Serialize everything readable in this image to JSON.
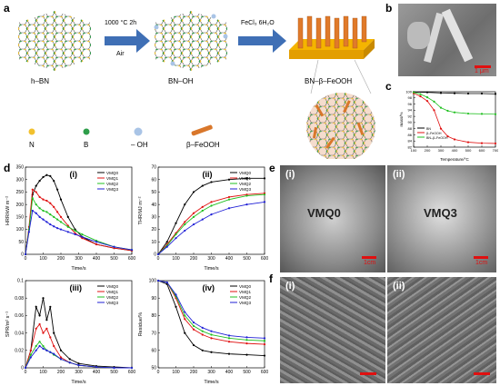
{
  "panels": {
    "a": "a",
    "b": "b",
    "c": "c",
    "d": "d",
    "e": "e",
    "f": "f"
  },
  "scheme": {
    "hbn": "h–BN",
    "bnoh": "BN–OH",
    "product": "BN–β–FeOOH",
    "step1_cond": "1000 °C 2h",
    "step1_atm": "Air",
    "step2_reagent": "FeCl₃ 6H₂O",
    "legend": {
      "n": "N",
      "b": "B",
      "oh": "– OH",
      "feooh": "β–FeOOH"
    },
    "colors": {
      "n": "#f2c12e",
      "b": "#2e9e4a",
      "oh": "#a9c4e6",
      "feooh": "#d9772b",
      "arrow": "#3f6fb5"
    }
  },
  "sem_b": {
    "scale": "1 μm"
  },
  "sem_e": {
    "i_tag": "(i)",
    "i_name": "VMQ0",
    "i_scale": "1cm",
    "ii_tag": "(ii)",
    "ii_name": "VMQ3",
    "ii_scale": "1cm"
  },
  "sem_f": {
    "i_tag": "(i)",
    "ii_tag": "(ii)"
  },
  "chart_data": [
    {
      "id": "c",
      "type": "line",
      "xlabel": "Temperature/°C",
      "ylabel": "mass/%",
      "xlim": [
        100,
        700
      ],
      "ylim": [
        82,
        100
      ],
      "xticks": [
        100,
        200,
        300,
        400,
        500,
        600,
        700
      ],
      "yticks": [
        82,
        84,
        86,
        88,
        90,
        92,
        94,
        96,
        98,
        100
      ],
      "series": [
        {
          "name": "BN",
          "color": "#000000",
          "x": [
            100,
            200,
            300,
            400,
            500,
            600,
            700
          ],
          "y": [
            99.9,
            99.8,
            99.6,
            99.5,
            99.4,
            99.4,
            99.3
          ]
        },
        {
          "name": "β–FeOOH",
          "color": "#e01010",
          "x": [
            100,
            150,
            200,
            250,
            300,
            350,
            400,
            500,
            600,
            700
          ],
          "y": [
            99.5,
            98.5,
            97,
            94,
            88,
            85.5,
            84.5,
            83.6,
            83.3,
            83.2
          ]
        },
        {
          "name": "BN–β–FeOOH",
          "color": "#22c022",
          "x": [
            100,
            150,
            200,
            250,
            300,
            350,
            400,
            500,
            600,
            700
          ],
          "y": [
            99.8,
            99.2,
            98.2,
            96.8,
            94.8,
            93.8,
            93.3,
            92.9,
            92.8,
            92.7
          ]
        }
      ]
    },
    {
      "id": "d1",
      "label": "(i)",
      "type": "line",
      "xlabel": "Time/s",
      "ylabel": "HRR/kW m⁻²",
      "xlim": [
        0,
        600
      ],
      "ylim": [
        0,
        350
      ],
      "xticks": [
        0,
        100,
        200,
        300,
        400,
        500,
        600
      ],
      "yticks": [
        0,
        50,
        100,
        150,
        200,
        250,
        300,
        350
      ],
      "series": [
        {
          "name": "VMQ0",
          "color": "#000000",
          "x": [
            0,
            20,
            40,
            60,
            80,
            100,
            120,
            140,
            160,
            180,
            200,
            240,
            280,
            320,
            400,
            500,
            600
          ],
          "y": [
            0,
            100,
            240,
            275,
            295,
            310,
            318,
            314,
            295,
            260,
            220,
            150,
            100,
            70,
            40,
            25,
            15
          ]
        },
        {
          "name": "VMQ1",
          "color": "#e01010",
          "x": [
            0,
            20,
            40,
            60,
            80,
            100,
            120,
            140,
            160,
            180,
            200,
            240,
            280,
            320,
            400,
            500,
            600
          ],
          "y": [
            0,
            110,
            260,
            250,
            230,
            220,
            215,
            205,
            190,
            170,
            150,
            115,
            85,
            65,
            40,
            25,
            15
          ]
        },
        {
          "name": "VMQ2",
          "color": "#22c022",
          "x": [
            0,
            20,
            40,
            60,
            80,
            100,
            120,
            140,
            160,
            180,
            200,
            240,
            280,
            320,
            400,
            500,
            600
          ],
          "y": [
            0,
            100,
            225,
            200,
            185,
            175,
            170,
            160,
            150,
            140,
            130,
            110,
            95,
            80,
            55,
            30,
            18
          ]
        },
        {
          "name": "VMQ3",
          "color": "#1f1fd6",
          "x": [
            0,
            20,
            40,
            60,
            80,
            100,
            120,
            140,
            160,
            180,
            200,
            240,
            280,
            320,
            400,
            500,
            600
          ],
          "y": [
            0,
            90,
            175,
            165,
            150,
            140,
            130,
            120,
            112,
            105,
            100,
            90,
            80,
            70,
            50,
            30,
            18
          ]
        }
      ]
    },
    {
      "id": "d2",
      "label": "(ii)",
      "type": "line",
      "xlabel": "Time/s",
      "ylabel": "THR/MJ m⁻²",
      "xlim": [
        0,
        600
      ],
      "ylim": [
        0,
        70
      ],
      "xticks": [
        0,
        100,
        200,
        300,
        400,
        500,
        600
      ],
      "yticks": [
        0,
        10,
        20,
        30,
        40,
        50,
        60,
        70
      ],
      "series": [
        {
          "name": "VMQ0",
          "color": "#000000",
          "x": [
            0,
            50,
            100,
            150,
            200,
            250,
            300,
            400,
            500,
            600
          ],
          "y": [
            0,
            10,
            25,
            40,
            50,
            55,
            58,
            60,
            61,
            61
          ]
        },
        {
          "name": "VMQ1",
          "color": "#e01010",
          "x": [
            0,
            50,
            100,
            150,
            200,
            250,
            300,
            400,
            500,
            600
          ],
          "y": [
            0,
            8,
            17,
            26,
            33,
            38,
            42,
            46,
            48,
            49
          ]
        },
        {
          "name": "VMQ2",
          "color": "#22c022",
          "x": [
            0,
            50,
            100,
            150,
            200,
            250,
            300,
            400,
            500,
            600
          ],
          "y": [
            0,
            7,
            16,
            24,
            30,
            35,
            39,
            44,
            47,
            48
          ]
        },
        {
          "name": "VMQ3",
          "color": "#1f1fd6",
          "x": [
            0,
            50,
            100,
            150,
            200,
            250,
            300,
            400,
            500,
            600
          ],
          "y": [
            0,
            6,
            13,
            19,
            24,
            28,
            32,
            37,
            40,
            42
          ]
        }
      ]
    },
    {
      "id": "d3",
      "label": "(iii)",
      "type": "line",
      "xlabel": "Time/s",
      "ylabel": "SPR/m² s⁻¹",
      "xlim": [
        0,
        600
      ],
      "ylim": [
        0,
        0.1
      ],
      "xticks": [
        0,
        100,
        200,
        300,
        400,
        500,
        600
      ],
      "yticks": [
        0,
        0.02,
        0.04,
        0.06,
        0.08,
        0.1
      ],
      "series": [
        {
          "name": "VMQ0",
          "color": "#000000",
          "x": [
            0,
            30,
            60,
            80,
            100,
            120,
            140,
            160,
            200,
            250,
            300,
            400,
            500,
            600
          ],
          "y": [
            0,
            0.02,
            0.07,
            0.06,
            0.08,
            0.055,
            0.07,
            0.04,
            0.02,
            0.01,
            0.005,
            0.002,
            0.001,
            0
          ]
        },
        {
          "name": "VMQ1",
          "color": "#e01010",
          "x": [
            0,
            30,
            60,
            80,
            100,
            120,
            140,
            160,
            200,
            250,
            300,
            400,
            500,
            600
          ],
          "y": [
            0,
            0.02,
            0.045,
            0.05,
            0.04,
            0.045,
            0.035,
            0.025,
            0.012,
            0.006,
            0.003,
            0.001,
            0,
            0
          ]
        },
        {
          "name": "VMQ2",
          "color": "#22c022",
          "x": [
            0,
            30,
            60,
            80,
            100,
            120,
            140,
            160,
            200,
            250,
            300,
            400,
            500,
            600
          ],
          "y": [
            0,
            0.015,
            0.025,
            0.03,
            0.025,
            0.02,
            0.018,
            0.015,
            0.01,
            0.006,
            0.003,
            0.001,
            0,
            0
          ]
        },
        {
          "name": "VMQ3",
          "color": "#1f1fd6",
          "x": [
            0,
            30,
            60,
            80,
            100,
            120,
            140,
            160,
            200,
            250,
            300,
            400,
            500,
            600
          ],
          "y": [
            0,
            0.012,
            0.02,
            0.025,
            0.022,
            0.02,
            0.018,
            0.016,
            0.01,
            0.006,
            0.003,
            0.001,
            0,
            0
          ]
        }
      ]
    },
    {
      "id": "d4",
      "label": "(iv)",
      "type": "line",
      "xlabel": "Time/s",
      "ylabel": "Residue/%",
      "xlim": [
        0,
        600
      ],
      "ylim": [
        50,
        100
      ],
      "xticks": [
        0,
        100,
        200,
        300,
        400,
        500,
        600
      ],
      "yticks": [
        50,
        60,
        70,
        80,
        90,
        100
      ],
      "series": [
        {
          "name": "VMQ0",
          "color": "#000000",
          "x": [
            0,
            50,
            100,
            150,
            200,
            250,
            300,
            400,
            500,
            600
          ],
          "y": [
            100,
            98,
            85,
            70,
            63,
            60,
            59,
            58,
            57.5,
            57
          ]
        },
        {
          "name": "VMQ1",
          "color": "#e01010",
          "x": [
            0,
            50,
            100,
            150,
            200,
            250,
            300,
            400,
            500,
            600
          ],
          "y": [
            100,
            99,
            90,
            78,
            72,
            69,
            67,
            65,
            64,
            63.5
          ]
        },
        {
          "name": "VMQ2",
          "color": "#22c022",
          "x": [
            0,
            50,
            100,
            150,
            200,
            250,
            300,
            400,
            500,
            600
          ],
          "y": [
            100,
            99,
            91,
            80,
            74,
            71,
            69,
            67,
            66,
            65.5
          ]
        },
        {
          "name": "VMQ3",
          "color": "#1f1fd6",
          "x": [
            0,
            50,
            100,
            150,
            200,
            250,
            300,
            400,
            500,
            600
          ],
          "y": [
            100,
            99,
            92,
            82,
            76,
            73,
            71,
            68.5,
            67.5,
            67
          ]
        }
      ]
    }
  ]
}
